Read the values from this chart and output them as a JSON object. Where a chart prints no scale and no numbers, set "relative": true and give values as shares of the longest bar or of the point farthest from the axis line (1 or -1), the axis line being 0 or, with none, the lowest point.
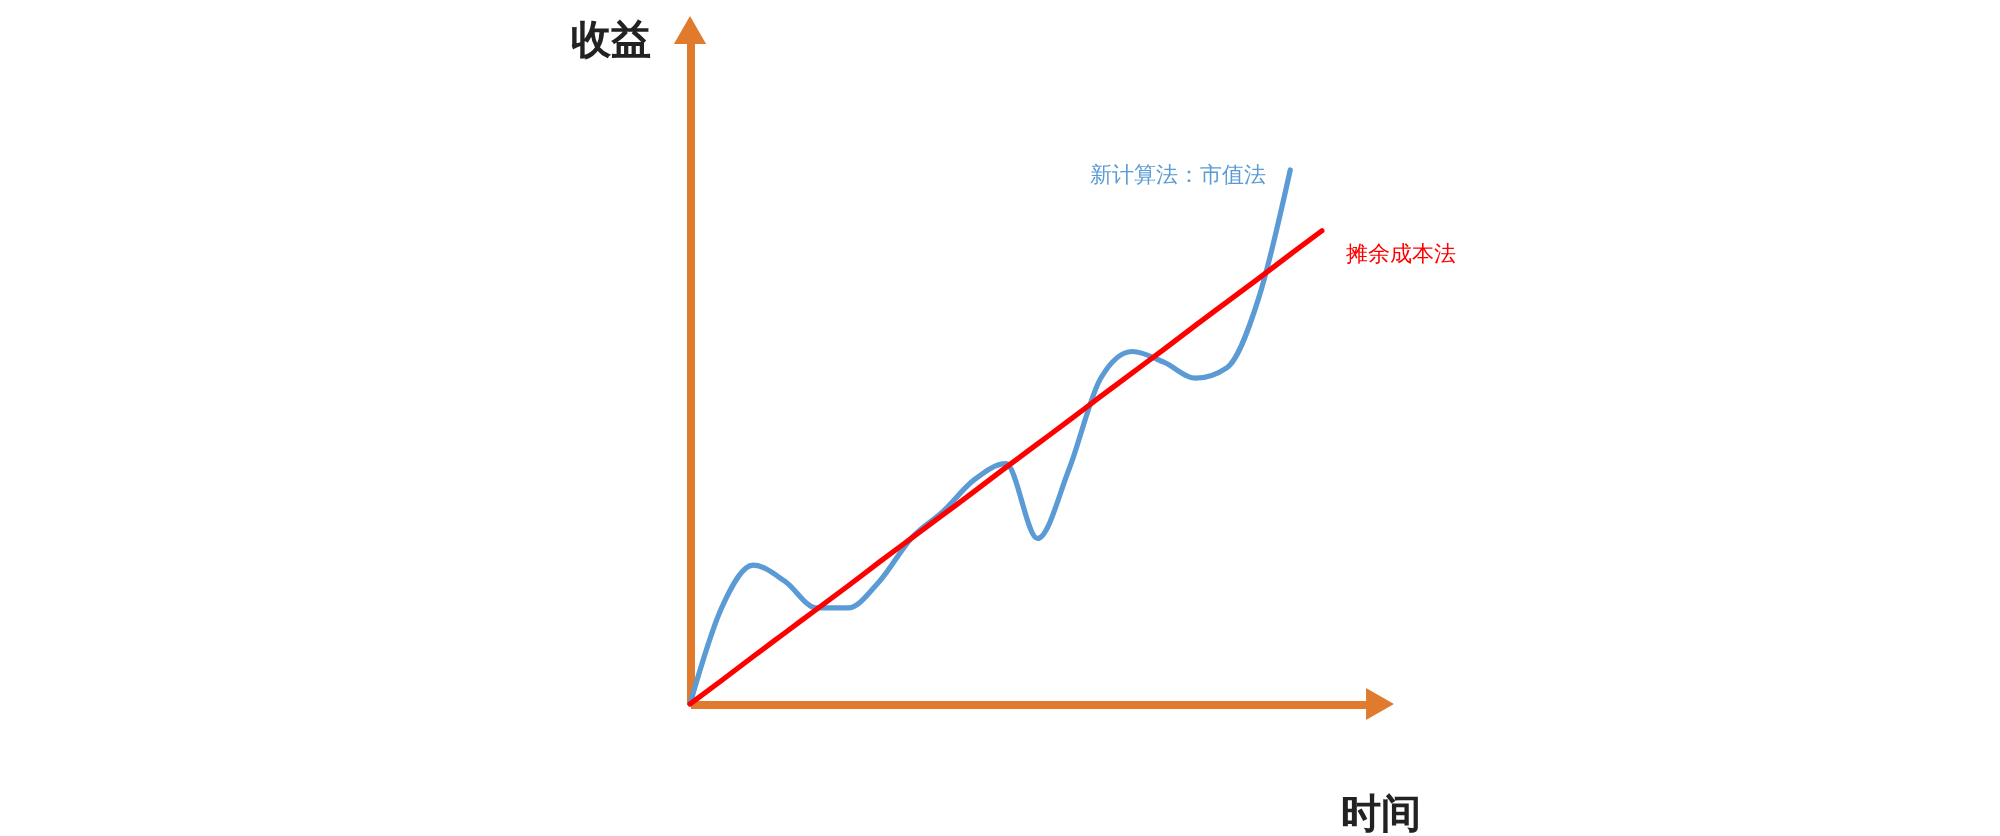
{
  "chart_data": {
    "type": "line",
    "relative": true,
    "xlabel": "时间",
    "ylabel": "收益",
    "categories": [
      null,
      null,
      null,
      null,
      null,
      null,
      null,
      null,
      null,
      null,
      null,
      null,
      null,
      null,
      null,
      null,
      null,
      null,
      null,
      null,
      null
    ],
    "series": [
      {
        "name": "新计算法：市值法",
        "color": "#5b9bd5",
        "values": [
          0,
          0.18,
          0.26,
          0.23,
          0.18,
          0.18,
          0.23,
          0.31,
          0.36,
          0.42,
          0.45,
          0.31,
          0.44,
          0.61,
          0.66,
          0.64,
          0.61,
          0.63,
          0.76,
          1,
          null
        ]
      },
      {
        "name": "摊余成本法",
        "color": "#ff0000",
        "values": [
          0,
          0.044,
          0.089,
          0.133,
          0.177,
          0.221,
          0.266,
          0.31,
          0.354,
          0.398,
          0.443,
          0.487,
          0.531,
          0.576,
          0.62,
          0.664,
          0.709,
          0.753,
          0.797,
          0.842,
          0.886
        ]
      }
    ],
    "legend": false,
    "marker": "none",
    "line_style": "solid",
    "grid": false
  }
}
